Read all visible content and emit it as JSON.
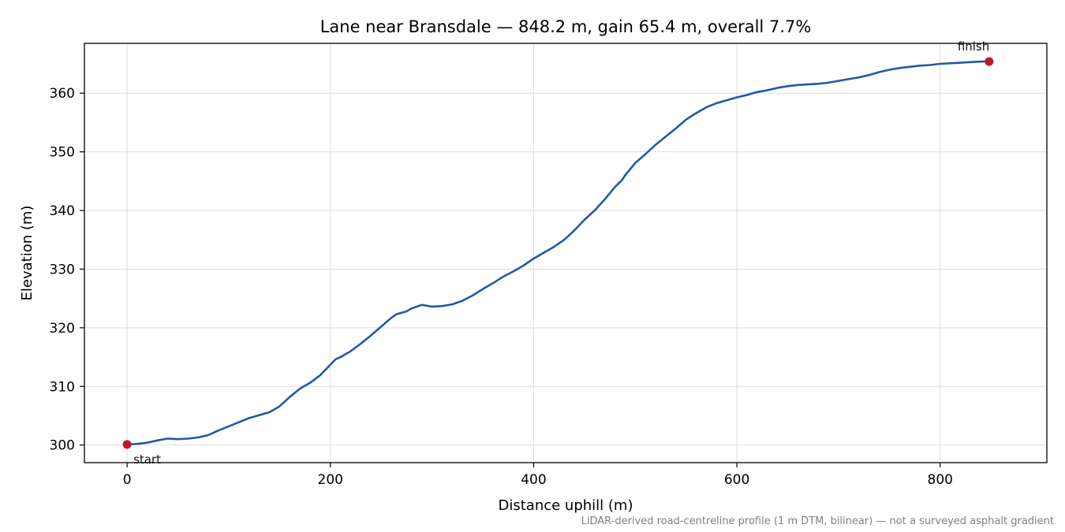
{
  "chart_data": {
    "type": "line",
    "title": "Lane near Bransdale — 848.2 m, gain 65.4 m, overall 7.7%",
    "xlabel": "Distance uphill (m)",
    "ylabel": "Elevation (m)",
    "xlim": [
      -42,
      905
    ],
    "ylim": [
      297,
      368.5
    ],
    "xticks": [
      0,
      200,
      400,
      600,
      800
    ],
    "yticks": [
      300,
      310,
      320,
      330,
      340,
      350,
      360
    ],
    "grid": true,
    "footnote": "LiDAR-derived road-centreline profile (1 m DTM, bilinear) — not a surveyed asphalt gradient",
    "series": [
      {
        "color": "#1f5aa8",
        "points": [
          [
            0,
            300.1
          ],
          [
            10,
            300.2
          ],
          [
            20,
            300.4
          ],
          [
            30,
            300.8
          ],
          [
            40,
            301.1
          ],
          [
            50,
            301.0
          ],
          [
            60,
            301.1
          ],
          [
            70,
            301.3
          ],
          [
            80,
            301.7
          ],
          [
            90,
            302.5
          ],
          [
            100,
            303.2
          ],
          [
            110,
            303.9
          ],
          [
            120,
            304.6
          ],
          [
            130,
            305.1
          ],
          [
            140,
            305.6
          ],
          [
            150,
            306.6
          ],
          [
            160,
            308.2
          ],
          [
            170,
            309.6
          ],
          [
            180,
            310.6
          ],
          [
            190,
            311.9
          ],
          [
            200,
            313.7
          ],
          [
            205,
            314.6
          ],
          [
            210,
            315.0
          ],
          [
            220,
            316.0
          ],
          [
            230,
            317.3
          ],
          [
            240,
            318.7
          ],
          [
            250,
            320.2
          ],
          [
            260,
            321.7
          ],
          [
            265,
            322.3
          ],
          [
            275,
            322.8
          ],
          [
            280,
            323.3
          ],
          [
            290,
            323.9
          ],
          [
            300,
            323.6
          ],
          [
            310,
            323.7
          ],
          [
            320,
            324.0
          ],
          [
            330,
            324.6
          ],
          [
            340,
            325.5
          ],
          [
            350,
            326.6
          ],
          [
            360,
            327.6
          ],
          [
            370,
            328.7
          ],
          [
            380,
            329.6
          ],
          [
            390,
            330.6
          ],
          [
            400,
            331.8
          ],
          [
            410,
            332.8
          ],
          [
            420,
            333.8
          ],
          [
            430,
            335.0
          ],
          [
            440,
            336.6
          ],
          [
            450,
            338.4
          ],
          [
            460,
            340.0
          ],
          [
            470,
            341.9
          ],
          [
            480,
            344.0
          ],
          [
            487,
            345.2
          ],
          [
            490,
            346.0
          ],
          [
            500,
            348.1
          ],
          [
            510,
            349.6
          ],
          [
            520,
            351.2
          ],
          [
            530,
            352.6
          ],
          [
            540,
            354.0
          ],
          [
            550,
            355.5
          ],
          [
            560,
            356.6
          ],
          [
            570,
            357.6
          ],
          [
            580,
            358.3
          ],
          [
            590,
            358.8
          ],
          [
            600,
            359.3
          ],
          [
            610,
            359.7
          ],
          [
            620,
            360.2
          ],
          [
            630,
            360.5
          ],
          [
            640,
            360.9
          ],
          [
            650,
            361.2
          ],
          [
            660,
            361.4
          ],
          [
            670,
            361.5
          ],
          [
            680,
            361.6
          ],
          [
            690,
            361.8
          ],
          [
            700,
            362.1
          ],
          [
            710,
            362.4
          ],
          [
            720,
            362.7
          ],
          [
            730,
            363.1
          ],
          [
            740,
            363.6
          ],
          [
            750,
            364.0
          ],
          [
            760,
            364.3
          ],
          [
            770,
            364.5
          ],
          [
            780,
            364.7
          ],
          [
            790,
            364.8
          ],
          [
            800,
            365.0
          ],
          [
            810,
            365.1
          ],
          [
            820,
            365.2
          ],
          [
            830,
            365.3
          ],
          [
            840,
            365.4
          ],
          [
            848.2,
            365.4
          ]
        ]
      }
    ],
    "markers": [
      {
        "label": "start",
        "x": 0,
        "y": 300.1,
        "color": "#c0182a"
      },
      {
        "label": "finish",
        "x": 848.2,
        "y": 365.4,
        "color": "#c0182a"
      }
    ]
  }
}
